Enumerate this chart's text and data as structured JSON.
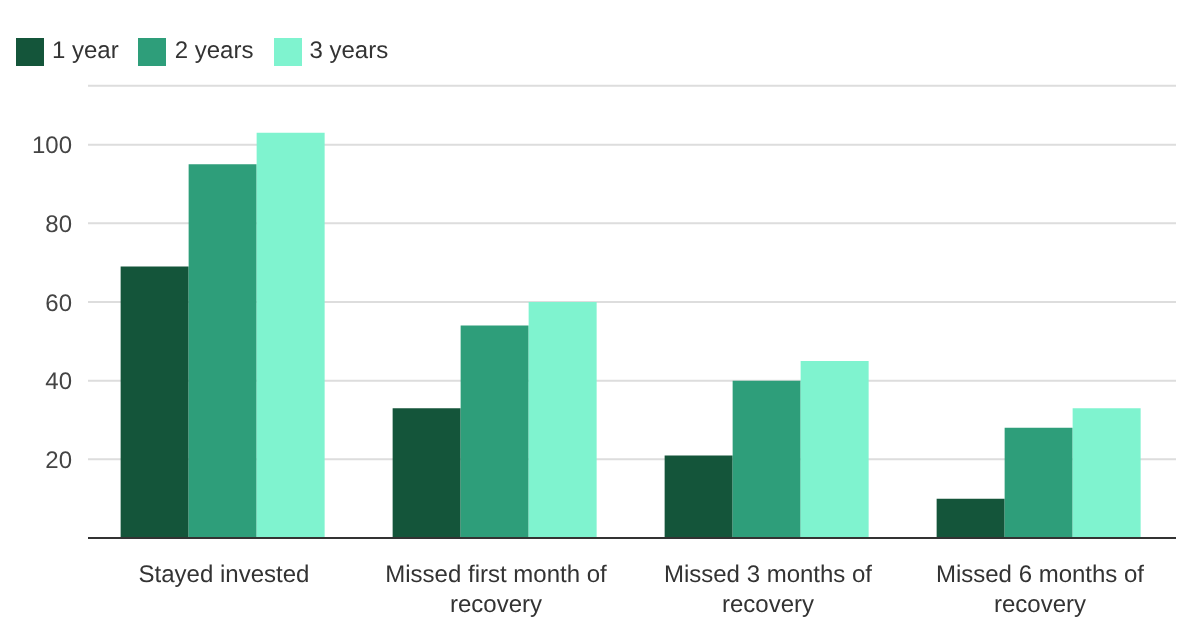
{
  "chart_data": {
    "type": "bar",
    "categories": [
      "Stayed invested",
      "Missed first month of recovery",
      "Missed 3 months of recovery",
      "Missed 6 months of recovery"
    ],
    "series": [
      {
        "name": "1 year",
        "color": "#14553a",
        "values": [
          69,
          33,
          21,
          10
        ]
      },
      {
        "name": "2 years",
        "color": "#2e9e7a",
        "values": [
          95,
          54,
          40,
          28
        ]
      },
      {
        "name": "3 years",
        "color": "#7ff3cf",
        "values": [
          103,
          60,
          45,
          33
        ]
      }
    ],
    "ylim": [
      0,
      115
    ],
    "yticks": [
      20,
      40,
      60,
      80,
      100
    ],
    "grid": "y",
    "legend": "top left"
  }
}
